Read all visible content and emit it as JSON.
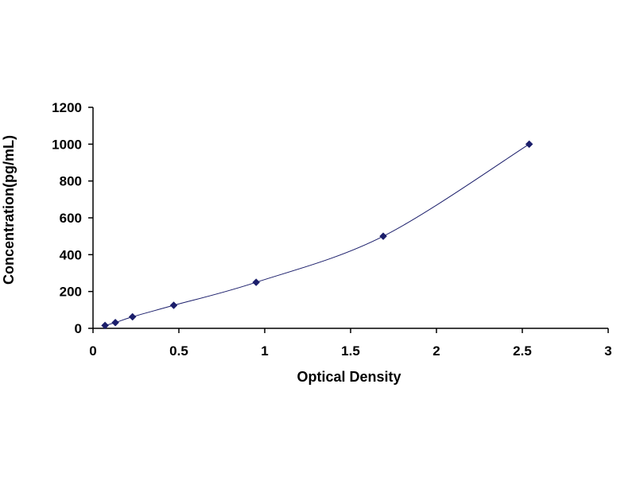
{
  "chart_data": {
    "type": "scatter",
    "title": "",
    "xlabel": "Optical Density",
    "ylabel": "Concentration(pg/mL)",
    "xlim": [
      0,
      3
    ],
    "ylim": [
      0,
      1200
    ],
    "x_ticks": [
      "0",
      "0.5",
      "1",
      "1.5",
      "2",
      "2.5",
      "3"
    ],
    "y_ticks": [
      "0",
      "200",
      "400",
      "600",
      "800",
      "1000",
      "1200"
    ],
    "grid": false,
    "legend": "none",
    "series": [
      {
        "x": [
          0.07,
          0.13,
          0.23,
          0.47,
          0.95,
          1.69,
          2.54
        ],
        "y": [
          15.6,
          31.2,
          62.5,
          125,
          250,
          500,
          1000
        ],
        "marker": "diamond",
        "line": "smooth"
      }
    ],
    "colors": {
      "marker": "#1b1e6b",
      "line": "#1b1e6b",
      "axis": "#000000"
    }
  }
}
